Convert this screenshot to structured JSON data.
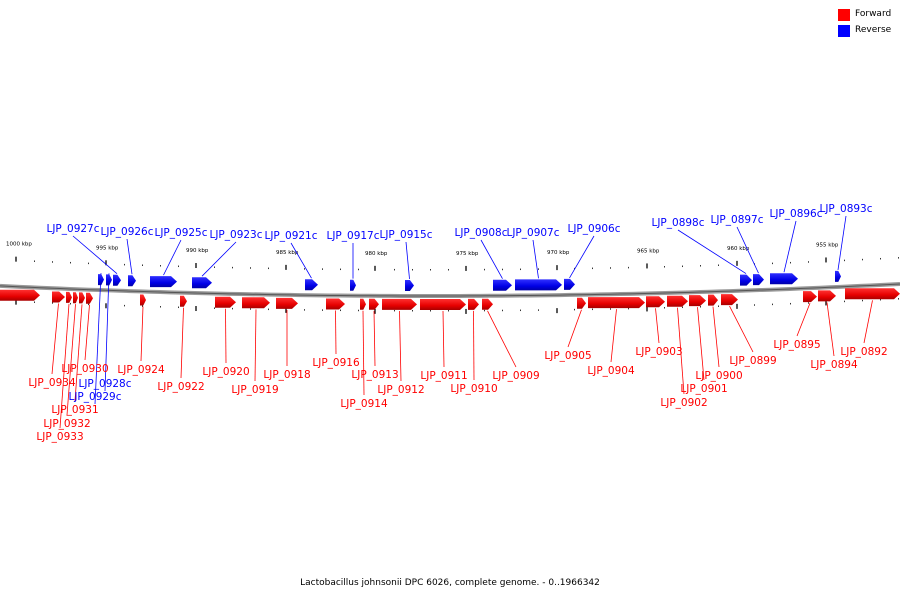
{
  "legend": {
    "forward_label": "Forward",
    "reverse_label": "Reverse",
    "forward_color": "#ff0000",
    "reverse_color": "#0000ff"
  },
  "caption": "Lactobacillus johnsonii DPC 6026, complete genome. - 0..1966342",
  "ticks": [
    "1000 kbp",
    "995 kbp",
    "990 kbp",
    "985 kbp",
    "980 kbp",
    "975 kbp",
    "970 kbp",
    "965 kbp",
    "960 kbp",
    "955 kbp"
  ],
  "genes": [
    {
      "name": "LJP_0934",
      "strand": "forward"
    },
    {
      "name": "LJP_0933",
      "strand": "forward"
    },
    {
      "name": "LJP_0932",
      "strand": "forward"
    },
    {
      "name": "LJP_0931",
      "strand": "forward"
    },
    {
      "name": "LJP_0930",
      "strand": "forward"
    },
    {
      "name": "LJP_0929c",
      "strand": "reverse"
    },
    {
      "name": "LJP_0928c",
      "strand": "reverse"
    },
    {
      "name": "LJP_0927c",
      "strand": "reverse"
    },
    {
      "name": "LJP_0926c",
      "strand": "reverse"
    },
    {
      "name": "LJP_0925c",
      "strand": "reverse"
    },
    {
      "name": "LJP_0924",
      "strand": "forward"
    },
    {
      "name": "LJP_0923c",
      "strand": "reverse"
    },
    {
      "name": "LJP_0922",
      "strand": "forward"
    },
    {
      "name": "LJP_0921c",
      "strand": "reverse"
    },
    {
      "name": "LJP_0920",
      "strand": "forward"
    },
    {
      "name": "LJP_0919",
      "strand": "forward"
    },
    {
      "name": "LJP_0918",
      "strand": "forward"
    },
    {
      "name": "LJP_0917c",
      "strand": "reverse"
    },
    {
      "name": "LJP_0916",
      "strand": "forward"
    },
    {
      "name": "LJP_0915c",
      "strand": "reverse"
    },
    {
      "name": "LJP_0914",
      "strand": "forward"
    },
    {
      "name": "LJP_0913",
      "strand": "forward"
    },
    {
      "name": "LJP_0912",
      "strand": "forward"
    },
    {
      "name": "LJP_0911",
      "strand": "forward"
    },
    {
      "name": "LJP_0910",
      "strand": "forward"
    },
    {
      "name": "LJP_0909",
      "strand": "forward"
    },
    {
      "name": "LJP_0908c",
      "strand": "reverse"
    },
    {
      "name": "LJP_0907c",
      "strand": "reverse"
    },
    {
      "name": "LJP_0906c",
      "strand": "reverse"
    },
    {
      "name": "LJP_0905",
      "strand": "forward"
    },
    {
      "name": "LJP_0904",
      "strand": "forward"
    },
    {
      "name": "LJP_0903",
      "strand": "forward"
    },
    {
      "name": "LJP_0902",
      "strand": "forward"
    },
    {
      "name": "LJP_0901",
      "strand": "forward"
    },
    {
      "name": "LJP_0900",
      "strand": "forward"
    },
    {
      "name": "LJP_0899",
      "strand": "forward"
    },
    {
      "name": "LJP_0898c",
      "strand": "reverse"
    },
    {
      "name": "LJP_0897c",
      "strand": "reverse"
    },
    {
      "name": "LJP_0896c",
      "strand": "reverse"
    },
    {
      "name": "LJP_0895",
      "strand": "forward"
    },
    {
      "name": "LJP_0894",
      "strand": "forward"
    },
    {
      "name": "LJP_0893c",
      "strand": "reverse"
    },
    {
      "name": "LJP_0892",
      "strand": "forward"
    }
  ]
}
